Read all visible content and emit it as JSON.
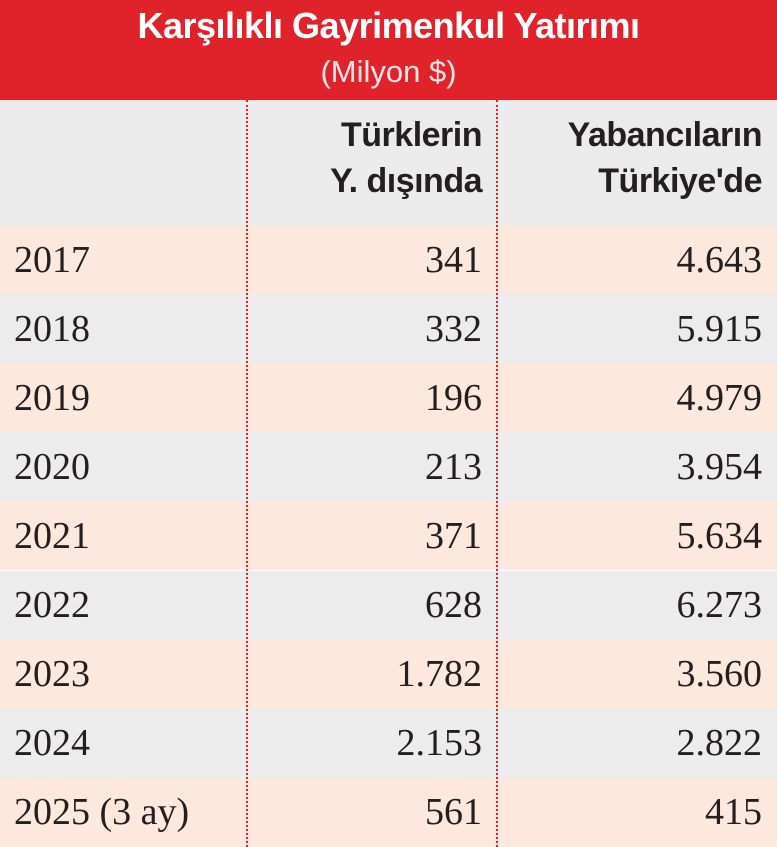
{
  "chart_data": {
    "type": "table",
    "title": "Karşılıklı Gayrimenkul Yatırımı",
    "subtitle": "(Milyon $)",
    "columns": [
      {
        "line1": "Türklerin",
        "line2": "Y. dışında"
      },
      {
        "line1": "Yabancıların",
        "line2": "Türkiye'de"
      }
    ],
    "rows": [
      {
        "year": "2017",
        "turks_abroad": "341",
        "foreigners_in_turkey": "4.643"
      },
      {
        "year": "2018",
        "turks_abroad": "332",
        "foreigners_in_turkey": "5.915"
      },
      {
        "year": "2019",
        "turks_abroad": "196",
        "foreigners_in_turkey": "4.979"
      },
      {
        "year": "2020",
        "turks_abroad": "213",
        "foreigners_in_turkey": "3.954"
      },
      {
        "year": "2021",
        "turks_abroad": "371",
        "foreigners_in_turkey": "5.634"
      },
      {
        "year": "2022",
        "turks_abroad": "628",
        "foreigners_in_turkey": "6.273"
      },
      {
        "year": "2023",
        "turks_abroad": "1.782",
        "foreigners_in_turkey": "3.560"
      },
      {
        "year": "2024",
        "turks_abroad": "2.153",
        "foreigners_in_turkey": "2.822"
      },
      {
        "year": "2025 (3 ay)",
        "turks_abroad": "561",
        "foreigners_in_turkey": "415"
      }
    ],
    "colors": {
      "header_bg": "#e0232b",
      "header_text": "#ffffff",
      "row_odd": "#fde8dd",
      "row_even": "#ececec",
      "divider": "#e0232b",
      "text": "#231f20"
    }
  }
}
